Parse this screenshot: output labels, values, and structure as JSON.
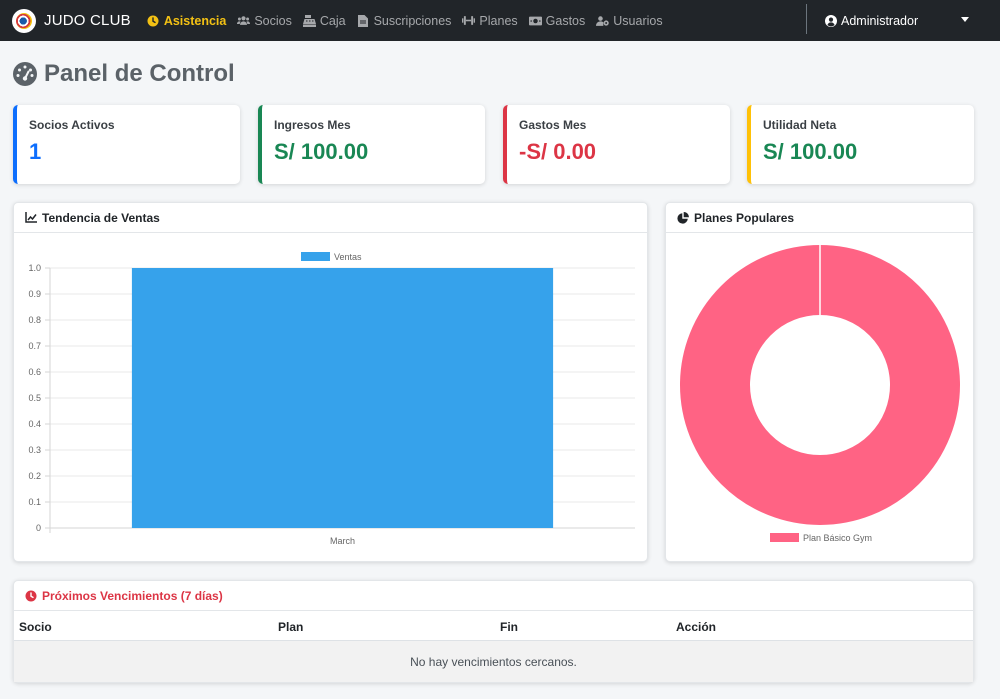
{
  "brand": {
    "name": "JUDO CLUB"
  },
  "nav": {
    "items": [
      {
        "label": "Asistencia",
        "icon": "clock-icon",
        "active": true
      },
      {
        "label": "Socios",
        "icon": "users-icon"
      },
      {
        "label": "Caja",
        "icon": "cash-register-icon"
      },
      {
        "label": "Suscripciones",
        "icon": "file-icon"
      },
      {
        "label": "Planes",
        "icon": "dumbbell-icon"
      },
      {
        "label": "Gastos",
        "icon": "money-bill-icon"
      },
      {
        "label": "Usuarios",
        "icon": "user-cog-icon"
      }
    ],
    "user": "Administrador"
  },
  "page": {
    "title": "Panel de Control"
  },
  "stats": [
    {
      "label": "Socios Activos",
      "value": "1",
      "color": "#0d6efd"
    },
    {
      "label": "Ingresos Mes",
      "value": "S/ 100.00",
      "color": "#198754"
    },
    {
      "label": "Gastos Mes",
      "value": "-S/ 0.00",
      "color": "#dc3545"
    },
    {
      "label": "Utilidad Neta",
      "value": "S/ 100.00",
      "color": "#198754",
      "border": "#ffc107"
    }
  ],
  "sales_panel": {
    "title": "Tendencia de Ventas"
  },
  "plans_panel": {
    "title": "Planes Populares"
  },
  "chart_data": [
    {
      "type": "bar",
      "categories": [
        "March"
      ],
      "series": [
        {
          "name": "Ventas",
          "values": [
            1.0
          ],
          "color": "#36a2eb"
        }
      ],
      "ylim": [
        0,
        1.0
      ],
      "yticks": [
        "0",
        "0.1",
        "0.2",
        "0.3",
        "0.4",
        "0.5",
        "0.6",
        "0.7",
        "0.8",
        "0.9",
        "1.0"
      ],
      "legend": "top",
      "grid": true
    },
    {
      "type": "pie",
      "style": "doughnut",
      "labels": [
        "Plan Básico Gym"
      ],
      "values": [
        1
      ],
      "colors": [
        "#ff6384"
      ],
      "legend": "bottom"
    }
  ],
  "expirations": {
    "title": "Próximos Vencimientos (7 días)",
    "columns": [
      "Socio",
      "Plan",
      "Fin",
      "Acción"
    ],
    "empty_message": "No hay vencimientos cercanos."
  },
  "colors": {
    "navbar": "#212529",
    "accent": "#f3c114",
    "danger": "#dc3545"
  }
}
